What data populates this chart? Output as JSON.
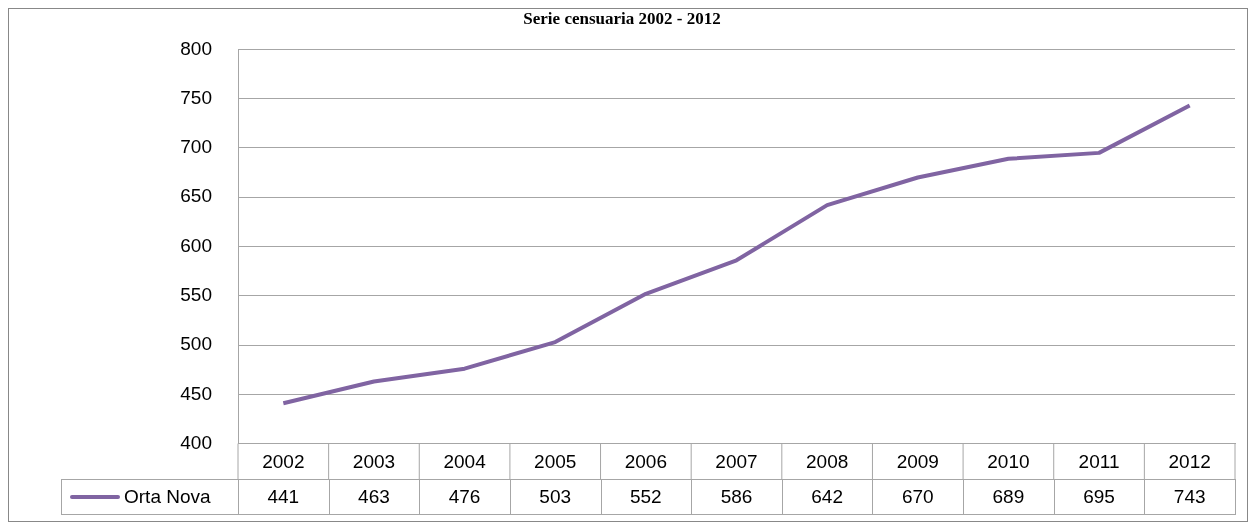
{
  "chart_data": {
    "type": "line",
    "title": "Serie censuaria 2002 - 2012",
    "categories": [
      "2002",
      "2003",
      "2004",
      "2005",
      "2006",
      "2007",
      "2008",
      "2009",
      "2010",
      "2011",
      "2012"
    ],
    "series": [
      {
        "name": "Orta Nova",
        "color": "#8064a2",
        "values": [
          441,
          463,
          476,
          503,
          552,
          586,
          642,
          670,
          689,
          695,
          743
        ]
      }
    ],
    "ylim": [
      400,
      800
    ],
    "yticks": [
      400,
      450,
      500,
      550,
      600,
      650,
      700,
      750,
      800
    ],
    "grid": "y",
    "legend": "bottom",
    "data_labels": true,
    "marker": "none",
    "line_style": "solid"
  }
}
